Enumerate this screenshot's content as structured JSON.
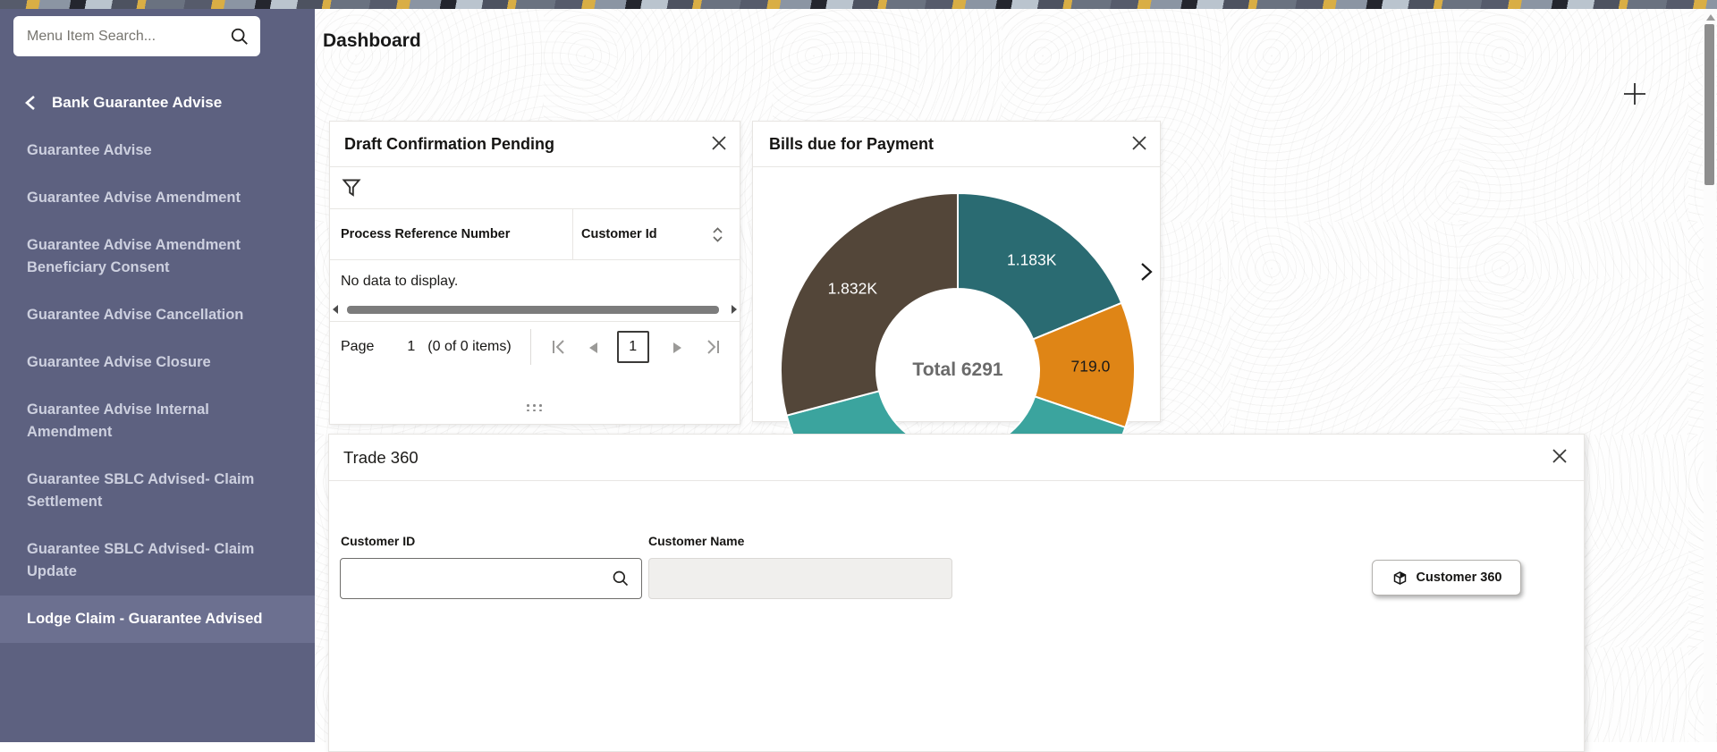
{
  "page": {
    "title": "Dashboard"
  },
  "theme": {
    "sidebar_bg": "#5d6180",
    "sidebar_selected_bg": "#6c7090",
    "sidebar_text": "#cdd0df",
    "accent_yellow": "#d9ae45",
    "card_border": "#e7e5e2"
  },
  "sidebar": {
    "search_placeholder": "Menu Item Search...",
    "search_value": "",
    "section_title": "Bank Guarantee Advise",
    "items": [
      {
        "label": "Guarantee Advise",
        "selected": false
      },
      {
        "label": "Guarantee Advise Amendment",
        "selected": false
      },
      {
        "label": "Guarantee Advise Amendment Beneficiary Consent",
        "selected": false
      },
      {
        "label": "Guarantee Advise Cancellation",
        "selected": false
      },
      {
        "label": "Guarantee Advise Closure",
        "selected": false
      },
      {
        "label": "Guarantee Advise Internal Amendment",
        "selected": false
      },
      {
        "label": "Guarantee SBLC Advised- Claim Settlement",
        "selected": false
      },
      {
        "label": "Guarantee SBLC Advised- Claim Update",
        "selected": false
      },
      {
        "label": "Lodge Claim - Guarantee Advised",
        "selected": true
      }
    ]
  },
  "draft_widget": {
    "title": "Draft Confirmation Pending",
    "columns": [
      "Process Reference Number",
      "Customer Id"
    ],
    "empty_text": "No data to display.",
    "page_label": "Page",
    "page_number": "1",
    "items_summary": "(0 of 0 items)",
    "current_page": "1"
  },
  "bills_widget": {
    "title": "Bills due for Payment"
  },
  "trade_widget": {
    "title": "Trade 360",
    "customer_id_label": "Customer ID",
    "customer_id_value": "",
    "customer_name_label": "Customer Name",
    "customer_name_value": "",
    "button_label": "Customer 360"
  },
  "chart_data": {
    "type": "pie",
    "subtype": "donut",
    "title": "Bills due for Payment",
    "total": 6291,
    "center_label": "Total 6291",
    "start_angle_deg": 0,
    "clockwise": true,
    "outer_radius": 198,
    "inner_radius": 91,
    "legend": "none",
    "segments": [
      {
        "name": "segment-1",
        "value": 1183,
        "label": "1.183K",
        "color": "#2a6b72",
        "label_color": "#ffffff"
      },
      {
        "name": "segment-2",
        "value": 719,
        "label": "719.0",
        "color": "#df8516",
        "label_color": "#1a1a1a"
      },
      {
        "name": "segment-3",
        "value": 2557,
        "label": "",
        "color": "#3ba49e",
        "label_color": "#ffffff"
      },
      {
        "name": "segment-4",
        "value": 1832,
        "label": "1.832K",
        "color": "#534639",
        "label_color": "#ffffff"
      }
    ]
  }
}
